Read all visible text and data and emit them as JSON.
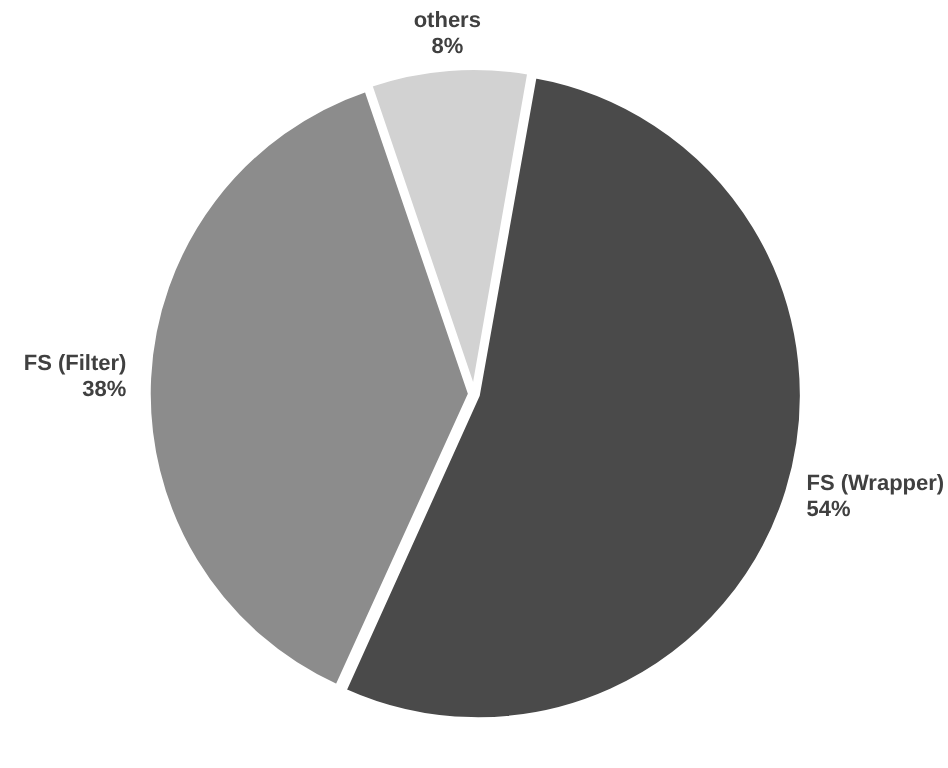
{
  "chart_data": {
    "type": "pie",
    "categories": [
      "FS (Wrapper)",
      "FS (Filter)",
      "others"
    ],
    "values": [
      54,
      38,
      8
    ],
    "value_labels": [
      "54%",
      "38%",
      "8%"
    ],
    "colors": [
      "#4a4a4a",
      "#8c8c8c",
      "#d2d2d2"
    ]
  }
}
